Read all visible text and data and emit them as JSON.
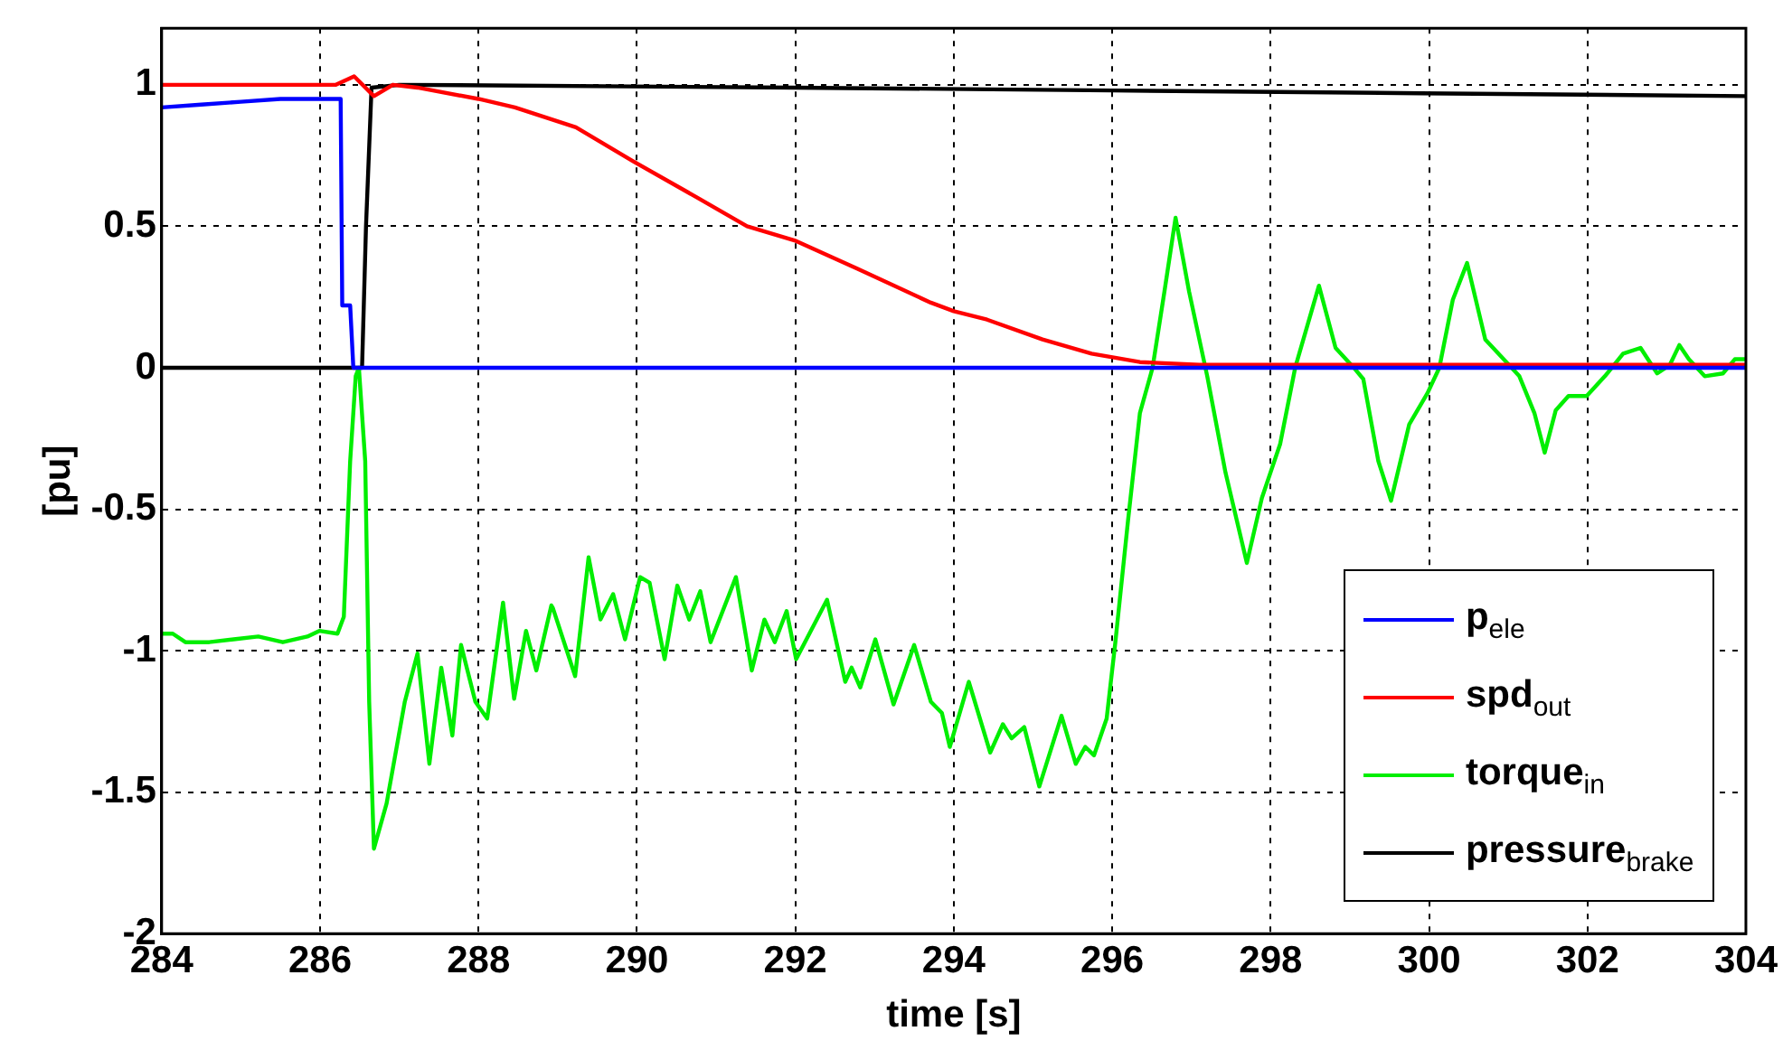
{
  "chart_data": {
    "type": "line",
    "xlabel": "time [s]",
    "ylabel": "[pu]",
    "xlim": [
      284,
      304
    ],
    "ylim": [
      -2,
      1.2
    ],
    "xticks": [
      284,
      286,
      288,
      290,
      292,
      294,
      296,
      298,
      300,
      302,
      304
    ],
    "yticks": [
      -2,
      -1.5,
      -1,
      -0.5,
      0,
      0.5,
      1
    ],
    "grid": true,
    "legend": "bottom right",
    "marker": "none",
    "line_style": "solid",
    "series": [
      {
        "name": "p$_{ele}$",
        "color": "#0000ff",
        "x": [
          284,
          284.5,
          285,
          285.5,
          286.26,
          286.28,
          286.38,
          286.42,
          304
        ],
        "values": [
          0.92,
          0.93,
          0.94,
          0.95,
          0.95,
          0.22,
          0.22,
          0,
          0
        ]
      },
      {
        "name": "spd$_{out}$",
        "color": "#ff0000",
        "x": [
          284,
          286.2,
          286.43,
          286.68,
          286.92,
          287.23,
          288,
          288.46,
          289.23,
          289.95,
          290.77,
          291.39,
          291.99,
          292.78,
          293.71,
          294,
          294.42,
          295.12,
          295.74,
          296.35,
          297.1,
          299.4,
          304
        ],
        "values": [
          1,
          1,
          1.03,
          0.96,
          1,
          0.99,
          0.95,
          0.92,
          0.85,
          0.73,
          0.6,
          0.5,
          0.45,
          0.35,
          0.23,
          0.2,
          0.17,
          0.1,
          0.05,
          0.02,
          0.01,
          0.01,
          0.01
        ]
      },
      {
        "name": "torque$_{in}$",
        "color": "#00ee00",
        "x": [
          284,
          284.14,
          284.3,
          284.6,
          284.91,
          285.22,
          285.53,
          285.84,
          285.99,
          286.22,
          286.3,
          286.38,
          286.45,
          286.49,
          286.57,
          286.62,
          286.68,
          286.84,
          287.07,
          287.23,
          287.38,
          287.53,
          287.67,
          287.78,
          287.96,
          288.11,
          288.31,
          288.45,
          288.6,
          288.73,
          288.92,
          288.94,
          289.22,
          289.39,
          289.54,
          289.7,
          289.85,
          290.04,
          290.16,
          290.35,
          290.51,
          290.66,
          290.8,
          290.93,
          291.25,
          291.45,
          291.61,
          291.74,
          291.89,
          292.01,
          292.4,
          292.63,
          292.71,
          292.82,
          293.01,
          293.24,
          293.5,
          293.71,
          293.85,
          293.95,
          294.19,
          294.46,
          294.62,
          294.73,
          294.89,
          295.08,
          295.36,
          295.54,
          295.66,
          295.77,
          295.93,
          296.04,
          296.2,
          296.35,
          296.51,
          296.66,
          296.8,
          296.97,
          297.2,
          297.43,
          297.7,
          297.89,
          298.12,
          298.31,
          298.61,
          298.82,
          299.05,
          299.17,
          299.36,
          299.52,
          299.75,
          299.98,
          300.13,
          300.3,
          300.48,
          300.71,
          300.91,
          301.14,
          301.33,
          301.46,
          301.6,
          301.76,
          301.99,
          302.22,
          302.45,
          302.67,
          302.88,
          303.04,
          303.16,
          303.28,
          303.48,
          303.71,
          303.86,
          304
        ],
        "values": [
          -0.94,
          -0.94,
          -0.97,
          -0.97,
          -0.96,
          -0.95,
          -0.97,
          -0.95,
          -0.93,
          -0.94,
          -0.88,
          -0.33,
          -0.03,
          0,
          -0.33,
          -1.18,
          -1.7,
          -1.54,
          -1.18,
          -1.01,
          -1.4,
          -1.06,
          -1.3,
          -0.98,
          -1.18,
          -1.24,
          -0.83,
          -1.17,
          -0.93,
          -1.07,
          -0.84,
          -0.85,
          -1.09,
          -0.67,
          -0.89,
          -0.8,
          -0.96,
          -0.74,
          -0.76,
          -1.03,
          -0.77,
          -0.89,
          -0.79,
          -0.97,
          -0.74,
          -1.07,
          -0.89,
          -0.97,
          -0.86,
          -1.03,
          -0.82,
          -1.11,
          -1.06,
          -1.13,
          -0.96,
          -1.19,
          -0.98,
          -1.18,
          -1.22,
          -1.34,
          -1.11,
          -1.36,
          -1.26,
          -1.31,
          -1.27,
          -1.48,
          -1.23,
          -1.4,
          -1.34,
          -1.37,
          -1.24,
          -0.97,
          -0.54,
          -0.16,
          0,
          0.27,
          0.53,
          0.27,
          -0.03,
          -0.37,
          -0.69,
          -0.46,
          -0.27,
          0,
          0.29,
          0.07,
          0,
          -0.04,
          -0.33,
          -0.47,
          -0.2,
          -0.09,
          0,
          0.24,
          0.37,
          0.1,
          0.04,
          -0.03,
          -0.16,
          -0.3,
          -0.15,
          -0.1,
          -0.1,
          -0.03,
          0.05,
          0.07,
          -0.02,
          0.01,
          0.08,
          0.03,
          -0.03,
          -0.02,
          0.03,
          0.03
        ]
      },
      {
        "name": "pressure$_{brake}$",
        "color": "#000000",
        "x": [
          284,
          286.53,
          286.58,
          286.65,
          287,
          292,
          296,
          299.9,
          304
        ],
        "values": [
          0,
          0,
          0.5,
          0.99,
          1,
          0.99,
          0.98,
          0.97,
          0.96
        ]
      }
    ]
  }
}
